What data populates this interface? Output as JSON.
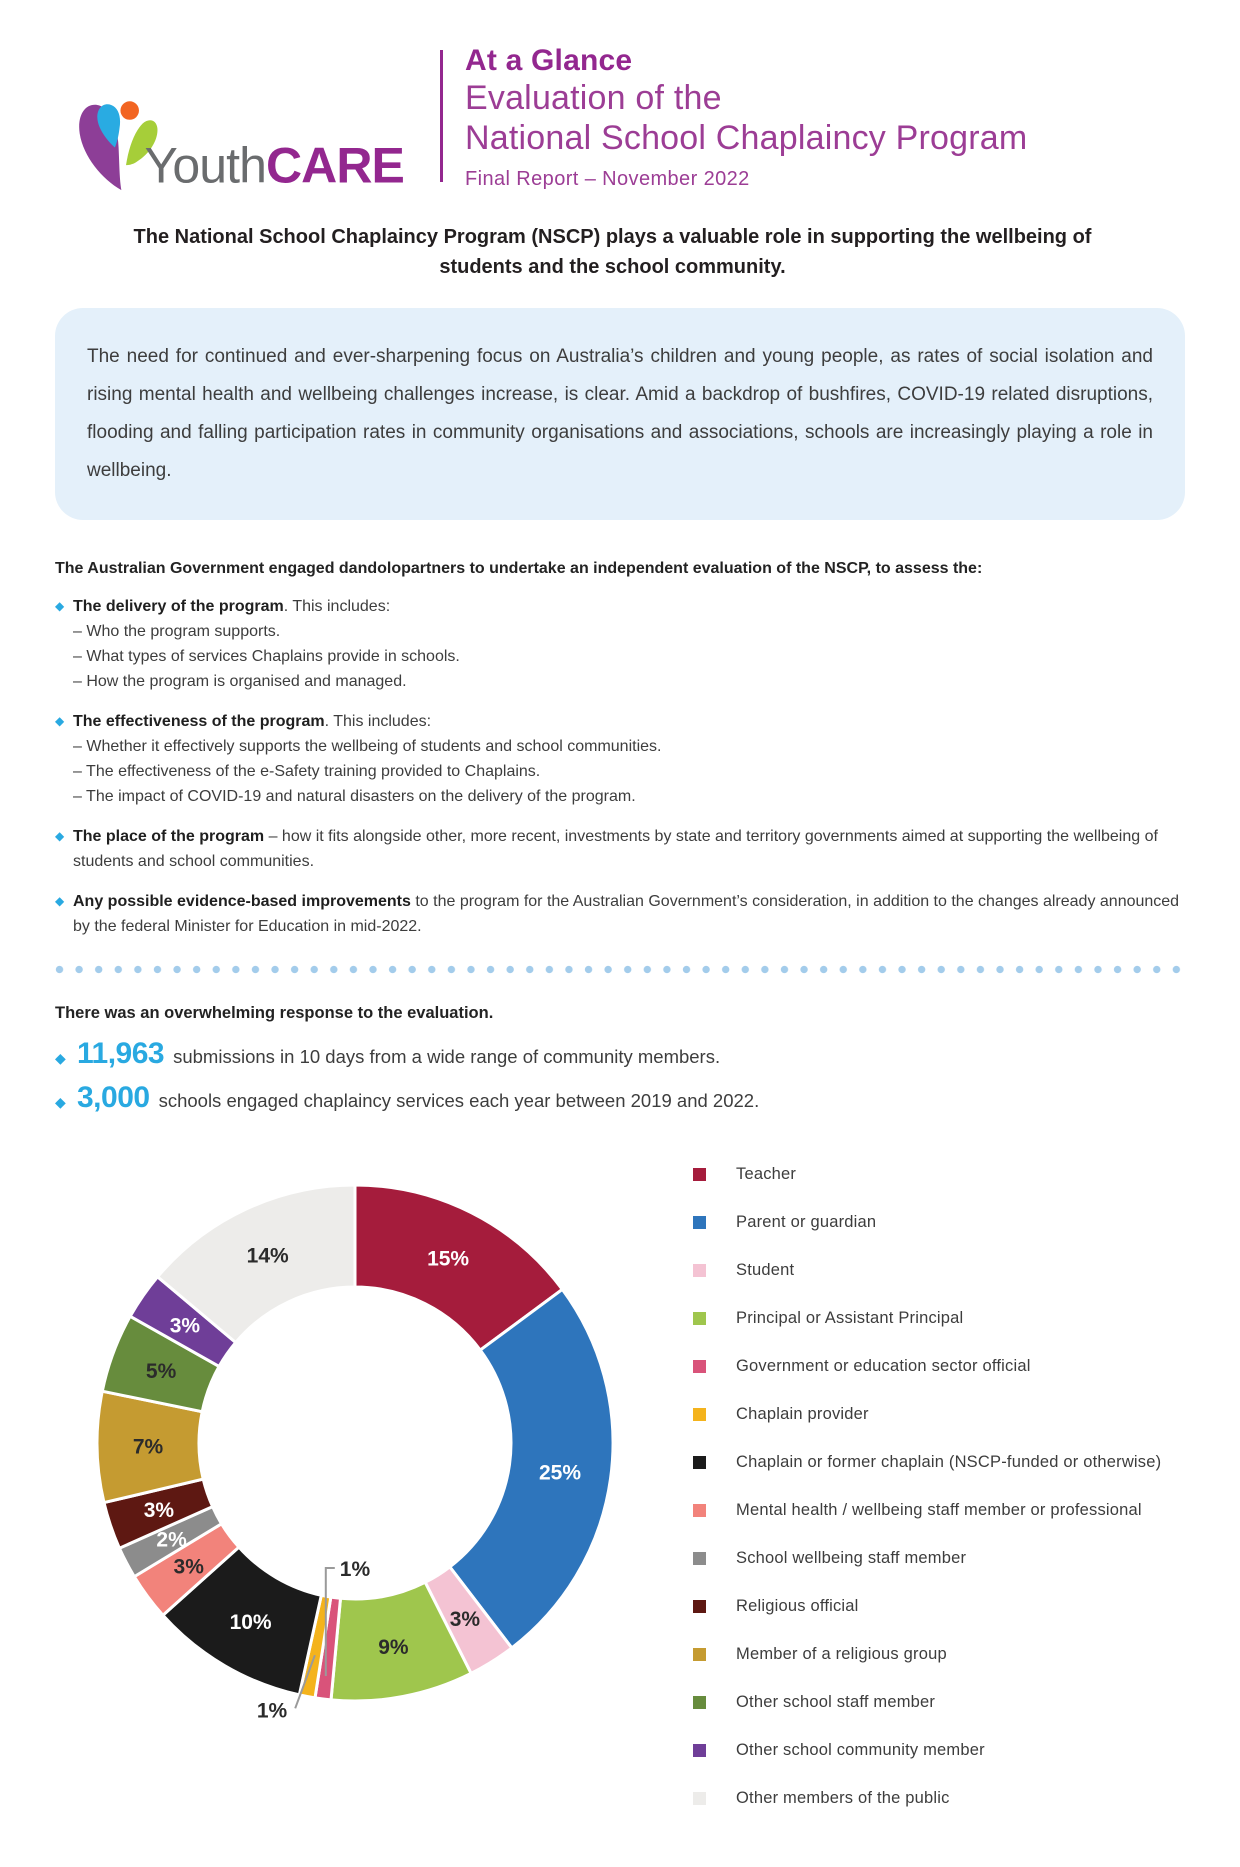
{
  "header": {
    "logo": {
      "word1": "Youth",
      "word2": "CARE"
    },
    "kicker": "At a Glance",
    "title_line1": "Evaluation of the",
    "title_line2": "National School Chaplaincy Program",
    "subtitle": "Final Report – November 2022"
  },
  "headline": "The National School Chaplaincy Program (NSCP) plays a valuable role in supporting the wellbeing of students and the school community.",
  "intro_box": {
    "text": "The need for continued and ever-sharpening focus on Australia’s children and young people, as rates of social isolation and rising mental health and wellbeing challenges increase, is clear. Amid a backdrop of bushfires, COVID-19 related disruptions, flooding and falling participation rates in community organisations and associations, schools are increasingly playing a role in wellbeing."
  },
  "assessment": {
    "heading": "The Australian Government engaged dandolopartners to undertake an independent evaluation of the NSCP, to assess the:",
    "bullets": [
      {
        "lead": "The delivery of the program",
        "rest": ". This includes:",
        "subs": [
          "– Who the program supports.",
          "– What types of services Chaplains provide in schools.",
          "– How the program is organised and managed."
        ]
      },
      {
        "lead": "The effectiveness of the program",
        "rest": ". This includes:",
        "subs": [
          "– Whether it effectively supports the wellbeing of students and school communities.",
          "– The effectiveness of the e-Safety training provided to Chaplains.",
          "– The impact of COVID-19 and natural disasters on the delivery of the program."
        ]
      },
      {
        "lead": "The place of the program",
        "rest": " – how it fits alongside other, more recent, investments by state and territory governments aimed at supporting the wellbeing of students and school communities.",
        "subs": []
      },
      {
        "lead": "Any possible evidence-based improvements",
        "rest": " to the program for the Australian Government’s consideration, in addition to the changes already announced by the federal Minister for Education in mid-2022.",
        "subs": []
      }
    ]
  },
  "response": {
    "heading": "There was an overwhelming response to the evaluation.",
    "stats": [
      {
        "value": "11,963",
        "text": "submissions in 10 days from a wide range of community members."
      },
      {
        "value": "3,000",
        "text": "schools engaged chaplaincy services each year between 2019 and 2022."
      }
    ]
  },
  "chart_data": {
    "type": "pie",
    "style": "donut",
    "unit": "%",
    "start_angle": "top",
    "direction": "clockwise",
    "legend_position": "right",
    "series": [
      {
        "label": "Teacher",
        "value": 15,
        "color": "#A51C3C",
        "text_color": "#ffffff"
      },
      {
        "label": "Parent or guardian",
        "value": 25,
        "color": "#2E75BC",
        "text_color": "#ffffff"
      },
      {
        "label": "Student",
        "value": 3,
        "color": "#F4C3D3",
        "text_color": "#2b2b2b"
      },
      {
        "label": "Principal or Assistant Principal",
        "value": 9,
        "color": "#9FC64D",
        "text_color": "#2b2b2b"
      },
      {
        "label": "Government or education sector official",
        "value": 1,
        "color": "#D9537A",
        "text_color": "#2b2b2b",
        "callout": "up"
      },
      {
        "label": "Chaplain provider",
        "value": 1,
        "color": "#F4B31C",
        "text_color": "#2b2b2b",
        "callout": "down"
      },
      {
        "label": "Chaplain or former chaplain (NSCP-funded or otherwise)",
        "value": 10,
        "color": "#1B1B1B",
        "text_color": "#ffffff"
      },
      {
        "label": "Mental health / wellbeing staff member or professional",
        "value": 3,
        "color": "#F2837B",
        "text_color": "#2b2b2b"
      },
      {
        "label": "School wellbeing staff member",
        "value": 2,
        "color": "#8C8C8C",
        "text_color": "#ffffff"
      },
      {
        "label": "Religious official",
        "value": 3,
        "color": "#5E1812",
        "text_color": "#ffffff"
      },
      {
        "label": "Member of a religious group",
        "value": 7,
        "color": "#C59B31",
        "text_color": "#2b2b2b"
      },
      {
        "label": "Other school staff member",
        "value": 5,
        "color": "#678C3D",
        "text_color": "#2b2b2b"
      },
      {
        "label": "Other school community member",
        "value": 3,
        "color": "#6F3E98",
        "text_color": "#ffffff"
      },
      {
        "label": "Other members of the public",
        "value": 14,
        "color": "#EDECEA",
        "text_color": "#2b2b2b"
      }
    ]
  },
  "colors": {
    "brand_purple": "#93278F",
    "title_purple": "#9C3D95",
    "accent_blue": "#29A9E1",
    "box_background": "#E4F0FA",
    "divider_dot": "#A3CCEB",
    "logo_gray": "#6A6C6E",
    "logo_petal_purple": "#8D3E97",
    "logo_petal_blue": "#29ABE2",
    "logo_petal_green": "#A6CE39",
    "logo_petal_orange": "#F26522"
  }
}
